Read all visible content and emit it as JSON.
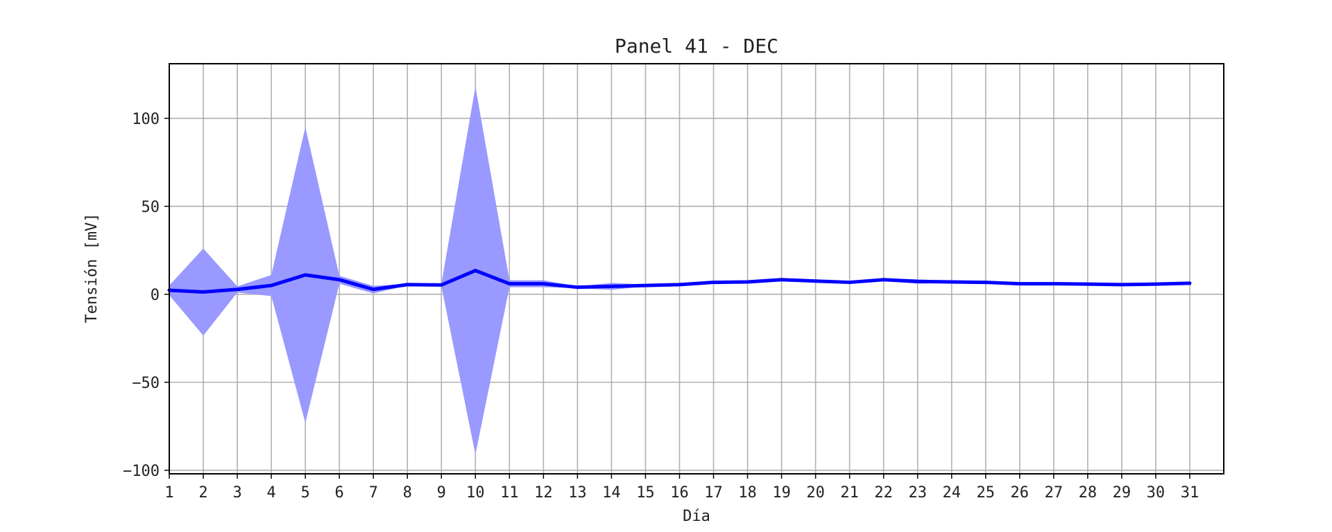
{
  "chart_data": {
    "type": "line",
    "title": "Panel 41 - DEC",
    "xlabel": "Día",
    "ylabel": "Tensión [mV]",
    "x": [
      1,
      2,
      3,
      4,
      5,
      6,
      7,
      8,
      9,
      10,
      11,
      12,
      13,
      14,
      15,
      16,
      17,
      18,
      19,
      20,
      21,
      22,
      23,
      24,
      25,
      26,
      27,
      28,
      29,
      30,
      31
    ],
    "xticks": [
      "1",
      "2",
      "3",
      "4",
      "5",
      "6",
      "7",
      "8",
      "9",
      "10",
      "11",
      "12",
      "13",
      "14",
      "15",
      "16",
      "17",
      "18",
      "19",
      "20",
      "21",
      "22",
      "23",
      "24",
      "25",
      "26",
      "27",
      "28",
      "29",
      "30",
      "31"
    ],
    "xlim": [
      1,
      32
    ],
    "ylim": [
      -102,
      131
    ],
    "yticks": [
      100,
      50,
      0,
      -50,
      -100
    ],
    "ytick_labels": [
      "100",
      "50",
      "0",
      "−50",
      "−100"
    ],
    "grid": true,
    "series": [
      {
        "values": [
          2.3,
          1.3,
          2.8,
          5.0,
          11.0,
          8.3,
          2.8,
          5.5,
          5.3,
          13.5,
          6.0,
          6.0,
          4.0,
          4.5,
          5.0,
          5.5,
          6.8,
          7.0,
          8.3,
          7.5,
          6.8,
          8.3,
          7.3,
          7.0,
          6.8,
          6.0,
          6.0,
          5.8,
          5.5,
          5.8,
          6.3
        ],
        "band_upper": [
          5.0,
          26.0,
          4.5,
          11.0,
          95.0,
          10.5,
          4.8,
          6.0,
          6.0,
          118.0,
          8.0,
          8.0,
          4.5,
          6.5,
          5.5,
          6.0,
          7.0,
          7.5,
          8.5,
          8.0,
          7.0,
          9.0,
          8.5,
          7.5,
          7.0,
          6.5,
          6.5,
          6.0,
          6.0,
          6.0,
          6.5
        ],
        "band_lower": [
          -0.5,
          -23.5,
          1.0,
          -1.0,
          -73.0,
          6.0,
          0.5,
          5.0,
          4.5,
          -91.0,
          4.0,
          4.0,
          3.5,
          2.5,
          4.5,
          5.0,
          6.5,
          6.5,
          8.0,
          7.0,
          6.5,
          7.5,
          6.0,
          6.5,
          6.5,
          5.5,
          5.5,
          5.5,
          5.0,
          5.5,
          6.0
        ],
        "line_color": "#0000ff",
        "band_color": "#9999ff"
      }
    ]
  }
}
